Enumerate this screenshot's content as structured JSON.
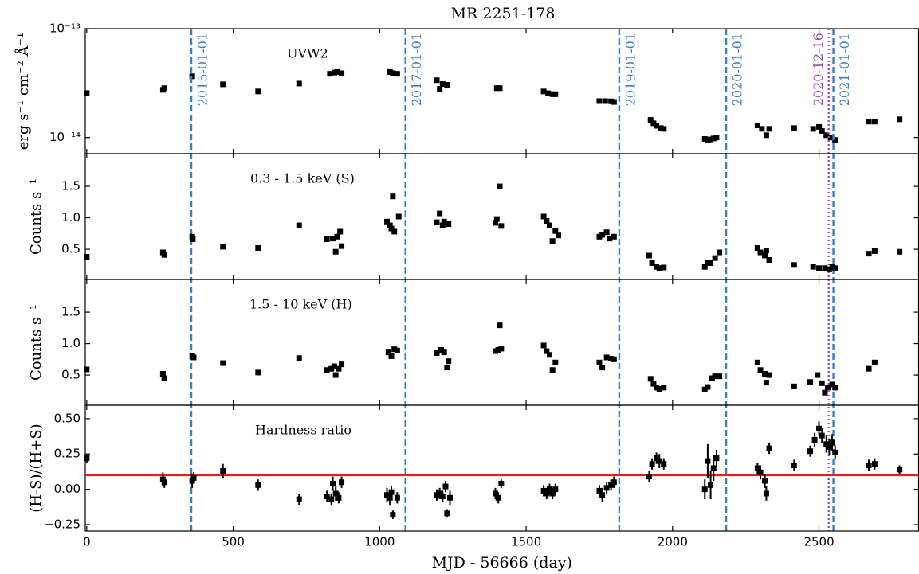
{
  "chart_data": [
    {
      "type": "scatter",
      "title": "MR 2251-178",
      "annotation": "UVW2",
      "ylabel": "erg s⁻¹ cm⁻² Å⁻¹",
      "log_y": true,
      "color": "#000000",
      "xlim": [
        -5,
        2840
      ],
      "ylim": [
        7.1e-15,
        1e-13
      ],
      "yticks": [
        {
          "value": 1e-14,
          "label": "10⁻¹⁴"
        },
        {
          "value": 1e-13,
          "label": "10⁻¹³"
        }
      ],
      "x": [
        0,
        260,
        265,
        360,
        465,
        585,
        725,
        830,
        845,
        855,
        870,
        1035,
        1045,
        1060,
        1195,
        1205,
        1215,
        1230,
        1400,
        1410,
        1560,
        1575,
        1590,
        1600,
        1750,
        1770,
        1790,
        1800,
        1925,
        1935,
        1945,
        1960,
        1970,
        2110,
        2120,
        2130,
        2140,
        2150,
        2290,
        2305,
        2320,
        2330,
        2415,
        2480,
        2500,
        2510,
        2525,
        2540,
        2555,
        2670,
        2690,
        2775
      ],
      "values": [
        2.56e-14,
        2.74e-14,
        2.84e-14,
        3.65e-14,
        3.08e-14,
        2.65e-14,
        3.13e-14,
        3.85e-14,
        3.95e-14,
        4e-14,
        3.9e-14,
        4e-14,
        3.9e-14,
        3.85e-14,
        3.36e-14,
        2.8e-14,
        3.1e-14,
        3.05e-14,
        2.84e-14,
        2.84e-14,
        2.65e-14,
        2.55e-14,
        2.5e-14,
        2.5e-14,
        2.16e-14,
        2.16e-14,
        2.15e-14,
        2.12e-14,
        1.45e-14,
        1.35e-14,
        1.28e-14,
        1.22e-14,
        1.2e-14,
        9.7e-15,
        9.5e-15,
        9.6e-15,
        9.8e-15,
        1e-14,
        1.29e-14,
        1.2e-14,
        1.05e-14,
        1.2e-14,
        1.22e-14,
        1.2e-14,
        1.25e-14,
        1.15e-14,
        1.05e-14,
        1e-14,
        9.5e-15,
        1.4e-14,
        1.4e-14,
        1.47e-14
      ],
      "vlines": [
        {
          "x": 357,
          "label": "2015-01-01",
          "color": "#3a7dc9",
          "style": "dashed",
          "label_side": "right"
        },
        {
          "x": 1088,
          "label": "2017-01-01",
          "color": "#3a7dc9",
          "style": "dashed",
          "label_side": "right"
        },
        {
          "x": 1818,
          "label": "2019-01-01",
          "color": "#3a7dc9",
          "style": "dashed",
          "label_side": "right"
        },
        {
          "x": 2183,
          "label": "2020-01-01",
          "color": "#3a7dc9",
          "style": "dashed",
          "label_side": "right"
        },
        {
          "x": 2533,
          "label": "2020-12-16",
          "color": "#9b4fae",
          "style": "dotted",
          "label_side": "left"
        },
        {
          "x": 2549,
          "label": "2021-01-01",
          "color": "#3a7dc9",
          "style": "dashed",
          "label_side": "right"
        }
      ]
    },
    {
      "type": "scatter",
      "annotation": "0.3 - 1.5 keV (S)",
      "ylabel": "Counts s⁻¹",
      "color": "#000000",
      "xlim": [
        -5,
        2840
      ],
      "ylim": [
        0.02,
        2.02
      ],
      "yticks": [
        0.5,
        {
          "value": 1.0,
          "label": "1.0"
        },
        1.5
      ],
      "x": [
        0,
        260,
        265,
        360,
        362,
        465,
        585,
        725,
        820,
        840,
        850,
        855,
        865,
        870,
        1025,
        1035,
        1040,
        1045,
        1050,
        1065,
        1195,
        1205,
        1215,
        1220,
        1235,
        1395,
        1400,
        1410,
        1415,
        1560,
        1570,
        1580,
        1590,
        1600,
        1610,
        1750,
        1760,
        1775,
        1785,
        1800,
        1920,
        1930,
        1945,
        1955,
        1970,
        2110,
        2120,
        2130,
        2145,
        2160,
        2290,
        2300,
        2315,
        2320,
        2330,
        2415,
        2480,
        2500,
        2520,
        2535,
        2545,
        2555,
        2670,
        2690,
        2775
      ],
      "values": [
        0.38,
        0.45,
        0.41,
        0.7,
        0.66,
        0.54,
        0.52,
        0.88,
        0.66,
        0.67,
        0.46,
        0.7,
        0.78,
        0.55,
        0.94,
        0.88,
        0.83,
        1.34,
        0.78,
        1.02,
        0.93,
        1.07,
        0.88,
        0.94,
        0.9,
        0.92,
        0.98,
        1.5,
        0.87,
        1.02,
        0.95,
        0.88,
        0.63,
        0.79,
        0.72,
        0.7,
        0.73,
        0.77,
        0.67,
        0.7,
        0.4,
        0.28,
        0.22,
        0.2,
        0.21,
        0.22,
        0.29,
        0.28,
        0.36,
        0.45,
        0.52,
        0.45,
        0.4,
        0.48,
        0.33,
        0.25,
        0.22,
        0.2,
        0.2,
        0.18,
        0.22,
        0.2,
        0.43,
        0.47,
        0.46
      ]
    },
    {
      "type": "scatter",
      "annotation": "1.5 - 10 keV (H)",
      "ylabel": "Counts s⁻¹",
      "color": "#000000",
      "xlim": [
        -5,
        2840
      ],
      "ylim": [
        0.02,
        2.02
      ],
      "yticks": [
        0.5,
        {
          "value": 1.0,
          "label": "1.0"
        },
        1.5
      ],
      "x": [
        0,
        260,
        265,
        360,
        365,
        465,
        585,
        725,
        820,
        835,
        845,
        850,
        860,
        870,
        1030,
        1040,
        1050,
        1060,
        1195,
        1210,
        1220,
        1230,
        1235,
        1395,
        1405,
        1410,
        1415,
        1560,
        1570,
        1580,
        1590,
        1600,
        1750,
        1760,
        1775,
        1790,
        1800,
        1925,
        1935,
        1945,
        1955,
        1970,
        2110,
        2120,
        2135,
        2145,
        2160,
        2290,
        2300,
        2315,
        2320,
        2330,
        2415,
        2470,
        2495,
        2510,
        2520,
        2530,
        2545,
        2555,
        2670,
        2690
      ],
      "values": [
        0.59,
        0.52,
        0.45,
        0.8,
        0.78,
        0.69,
        0.54,
        0.77,
        0.58,
        0.6,
        0.64,
        0.5,
        0.6,
        0.67,
        0.86,
        0.8,
        0.91,
        0.89,
        0.85,
        0.9,
        0.86,
        0.62,
        0.72,
        0.88,
        0.9,
        1.29,
        0.92,
        0.97,
        0.88,
        0.82,
        0.58,
        0.7,
        0.7,
        0.62,
        0.78,
        0.76,
        0.75,
        0.44,
        0.36,
        0.3,
        0.28,
        0.3,
        0.27,
        0.31,
        0.45,
        0.48,
        0.48,
        0.7,
        0.58,
        0.52,
        0.38,
        0.5,
        0.32,
        0.39,
        0.5,
        0.37,
        0.22,
        0.3,
        0.35,
        0.3,
        0.6,
        0.7
      ]
    },
    {
      "type": "scatter",
      "annotation": "Hardness ratio",
      "ylabel": "(H-S)/(H+S)",
      "xlabel": "MJD - 56666 (day)",
      "color": "#000000",
      "xlim": [
        -5,
        2840
      ],
      "ylim": [
        -0.295,
        0.595
      ],
      "xticks": [
        0,
        500,
        1000,
        1500,
        2000,
        2500
      ],
      "yticks": [
        {
          "value": -0.25,
          "label": "−0.25"
        },
        {
          "value": 0.0,
          "label": "0.00"
        },
        0.25,
        {
          "value": 0.5,
          "label": "0.50"
        }
      ],
      "hline": {
        "value": 0.1,
        "color": "#e0201b"
      },
      "x": [
        0,
        260,
        265,
        360,
        365,
        465,
        585,
        725,
        820,
        835,
        840,
        850,
        860,
        870,
        1025,
        1035,
        1040,
        1045,
        1060,
        1195,
        1205,
        1215,
        1225,
        1230,
        1240,
        1395,
        1405,
        1415,
        1560,
        1570,
        1580,
        1590,
        1600,
        1750,
        1760,
        1775,
        1790,
        1800,
        1920,
        1930,
        1945,
        1955,
        1970,
        2110,
        2120,
        2130,
        2140,
        2150,
        2290,
        2300,
        2315,
        2320,
        2330,
        2415,
        2470,
        2485,
        2500,
        2510,
        2525,
        2535,
        2545,
        2555,
        2670,
        2690,
        2775
      ],
      "values": [
        0.22,
        0.07,
        0.05,
        0.06,
        0.08,
        0.13,
        0.03,
        -0.07,
        -0.05,
        -0.07,
        0.04,
        -0.03,
        -0.06,
        0.05,
        -0.04,
        -0.06,
        -0.02,
        -0.18,
        -0.06,
        -0.04,
        -0.03,
        -0.05,
        0.02,
        -0.17,
        -0.06,
        -0.03,
        -0.06,
        0.04,
        -0.01,
        -0.03,
        0.0,
        -0.03,
        0.0,
        -0.01,
        -0.04,
        0.01,
        0.03,
        0.05,
        0.09,
        0.18,
        0.22,
        0.2,
        0.18,
        0.0,
        0.2,
        0.03,
        0.15,
        0.22,
        0.15,
        0.12,
        0.06,
        -0.03,
        0.29,
        0.17,
        0.27,
        0.35,
        0.43,
        0.38,
        0.32,
        0.3,
        0.33,
        0.26,
        0.17,
        0.18,
        0.14
      ],
      "errors": [
        0.03,
        0.05,
        0.04,
        0.05,
        0.04,
        0.05,
        0.04,
        0.04,
        0.04,
        0.04,
        0.05,
        0.05,
        0.04,
        0.04,
        0.05,
        0.05,
        0.04,
        0.03,
        0.04,
        0.04,
        0.04,
        0.04,
        0.04,
        0.03,
        0.05,
        0.04,
        0.04,
        0.03,
        0.04,
        0.04,
        0.04,
        0.04,
        0.04,
        0.04,
        0.05,
        0.04,
        0.04,
        0.04,
        0.04,
        0.04,
        0.04,
        0.05,
        0.04,
        0.07,
        0.12,
        0.1,
        0.09,
        0.06,
        0.04,
        0.05,
        0.05,
        0.05,
        0.04,
        0.04,
        0.04,
        0.05,
        0.05,
        0.05,
        0.06,
        0.06,
        0.06,
        0.05,
        0.04,
        0.04,
        0.03
      ]
    }
  ]
}
